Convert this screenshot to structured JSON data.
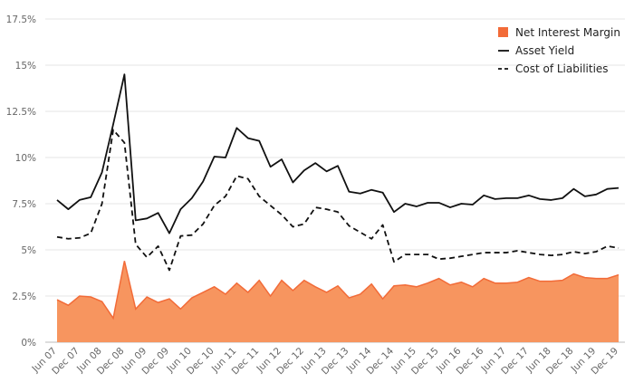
{
  "chart_data": {
    "type": "line",
    "title": "",
    "xlabel": "",
    "ylabel": "",
    "ylim": [
      0,
      17.5
    ],
    "y_ticks": [
      "0%",
      "2.5%",
      "5%",
      "7.5%",
      "10%",
      "12.5%",
      "15%",
      "17.5%"
    ],
    "y_tick_values": [
      0,
      2.5,
      5,
      7.5,
      10,
      12.5,
      15,
      17.5
    ],
    "x_tick_labels": [
      "Jun 07",
      "Dec 07",
      "Jun 08",
      "Dec 08",
      "Jun 09",
      "Dec 09",
      "Jun 10",
      "Dec 10",
      "Jun 11",
      "Dec 11",
      "Jun 12",
      "Dec 12",
      "Jun 13",
      "Dec 13",
      "Jun 14",
      "Dec 14",
      "Jun 15",
      "Dec 15",
      "Jun 16",
      "Dec 16",
      "Jun 17",
      "Dec 17",
      "Jun 18",
      "Dec 18",
      "Jun 19",
      "Dec 19"
    ],
    "x_tick_index": [
      0,
      2,
      4,
      6,
      8,
      10,
      12,
      14,
      16,
      18,
      20,
      22,
      24,
      26,
      28,
      30,
      32,
      34,
      36,
      38,
      40,
      42,
      44,
      46,
      48,
      50
    ],
    "grid": true,
    "legend_position": "top-right",
    "colors": {
      "net_interest_margin": "#f26b38",
      "net_interest_margin_fill": "#f7955f",
      "asset_yield": "#111111",
      "cost_of_liabilities": "#111111",
      "grid": "#e6e6e6",
      "baseline": "#bbbbbb"
    },
    "series": [
      {
        "name": "Net Interest Margin",
        "style": "area",
        "values": [
          2.3,
          2.0,
          2.5,
          2.45,
          2.2,
          1.3,
          4.4,
          1.8,
          2.45,
          2.15,
          2.35,
          1.8,
          2.4,
          2.7,
          3.0,
          2.6,
          3.2,
          2.7,
          3.35,
          2.5,
          3.35,
          2.8,
          3.35,
          3.0,
          2.7,
          3.05,
          2.4,
          2.6,
          3.15,
          2.35,
          3.05,
          3.1,
          3.0,
          3.2,
          3.45,
          3.1,
          3.25,
          3.0,
          3.45,
          3.2,
          3.2,
          3.25,
          3.5,
          3.3,
          3.3,
          3.35,
          3.7,
          3.5,
          3.45,
          3.45,
          3.65
        ]
      },
      {
        "name": "Asset Yield",
        "style": "solid",
        "values": [
          7.7,
          7.2,
          7.7,
          7.85,
          9.2,
          11.8,
          14.5,
          6.6,
          6.7,
          7.0,
          5.9,
          7.2,
          7.8,
          8.7,
          10.05,
          10.0,
          11.6,
          11.05,
          10.9,
          9.5,
          9.9,
          8.65,
          9.3,
          9.7,
          9.25,
          9.55,
          8.15,
          8.05,
          8.25,
          8.1,
          7.05,
          7.5,
          7.35,
          7.55,
          7.55,
          7.3,
          7.5,
          7.45,
          7.95,
          7.75,
          7.8,
          7.8,
          7.95,
          7.75,
          7.7,
          7.8,
          8.3,
          7.9,
          8.0,
          8.3,
          8.35
        ]
      },
      {
        "name": "Cost of Liabilities",
        "style": "dashed",
        "values": [
          5.7,
          5.6,
          5.65,
          5.9,
          7.5,
          11.5,
          10.8,
          5.3,
          4.6,
          5.2,
          3.9,
          5.75,
          5.8,
          6.4,
          7.4,
          7.9,
          9.0,
          8.85,
          7.9,
          7.4,
          6.9,
          6.25,
          6.4,
          7.3,
          7.2,
          7.05,
          6.3,
          5.95,
          5.6,
          6.35,
          4.35,
          4.75,
          4.75,
          4.75,
          4.5,
          4.55,
          4.65,
          4.75,
          4.85,
          4.85,
          4.85,
          4.95,
          4.85,
          4.75,
          4.7,
          4.75,
          4.9,
          4.8,
          4.9,
          5.2,
          5.1
        ]
      }
    ],
    "legend": [
      {
        "label": "Net Interest Margin",
        "marker": "square"
      },
      {
        "label": "Asset Yield",
        "marker": "solid-line"
      },
      {
        "label": "Cost of Liabilities",
        "marker": "dashed-line"
      }
    ]
  }
}
